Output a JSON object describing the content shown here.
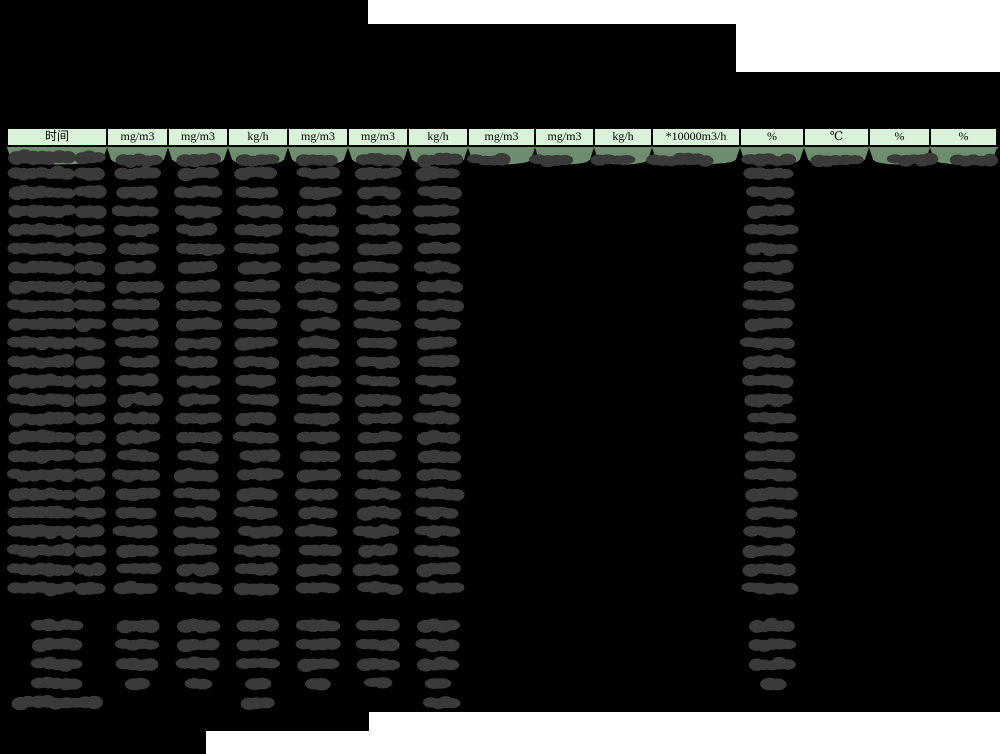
{
  "page": {
    "background": "#000000"
  },
  "table": {
    "header_units": [
      "时间",
      "mg/m3",
      "mg/m3",
      "kg/h",
      "mg/m3",
      "mg/m3",
      "kg/h",
      "mg/m3",
      "mg/m3",
      "kg/h",
      "*10000m3/h",
      "%",
      "℃",
      "%",
      "%"
    ],
    "header_bg": "#d9f3d9",
    "first_row_bg": "#6e8c6e",
    "border_color": "#000000"
  },
  "redaction": {
    "blob_color": "#3a3a3a",
    "unredacted_color": "#ffffff"
  }
}
